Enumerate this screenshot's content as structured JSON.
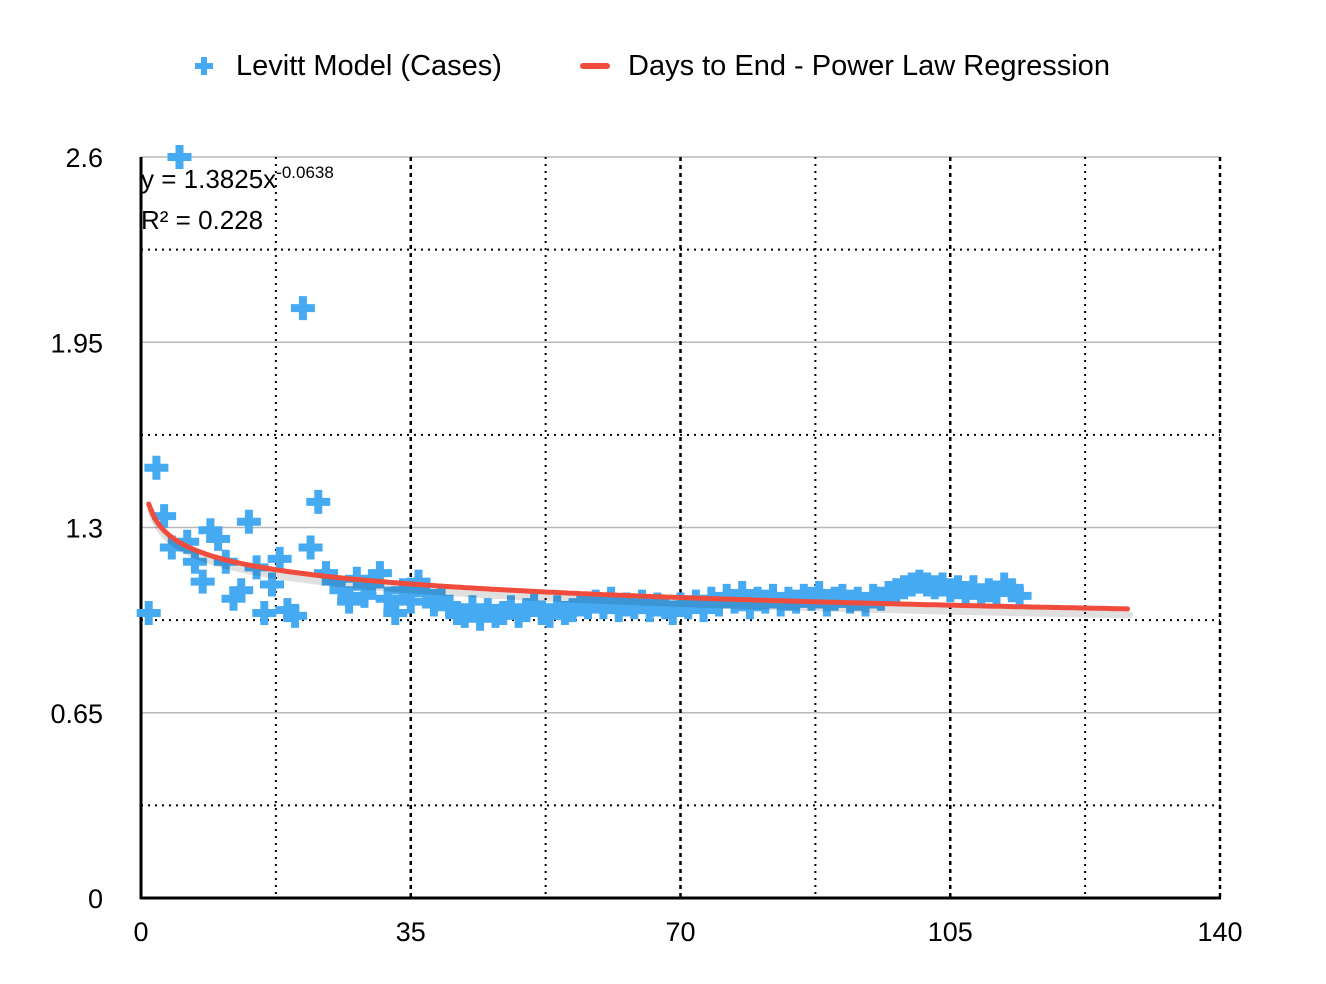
{
  "legend": {
    "series1_label": "Levitt Model (Cases)",
    "series2_label": "Days to End - Power Law Regression"
  },
  "colors": {
    "scatter": "#45aaf2",
    "regression": "#f04c3e",
    "grid_solid": "#b8b8b8",
    "grid_dotted": "#000000",
    "axis": "#000000"
  },
  "icons": {
    "scatter_marker": "plus-marker-icon",
    "regression_marker": "line-swatch-icon"
  },
  "chart_data": {
    "type": "scatter",
    "title": "",
    "xlabel": "",
    "ylabel": "",
    "xlim": [
      0,
      140
    ],
    "ylim": [
      0,
      2.6
    ],
    "x_ticks": [
      "0",
      "35",
      "70",
      "105",
      "140"
    ],
    "y_ticks": [
      "0",
      "0.65",
      "1.3",
      "1.95",
      "2.6"
    ],
    "grid": true,
    "legend_position": "top",
    "trendline": {
      "name": "Days to End - Power Law Regression",
      "type": "power",
      "coefficient": 1.3825,
      "exponent": -0.0638,
      "x_range": [
        1,
        128
      ],
      "equation_label": {
        "prefix": "y = 1.3825x",
        "exponent_text": "-0.0638",
        "r2_text": "R² = 0.228"
      }
    },
    "series": [
      {
        "name": "Levitt Model (Cases)",
        "points": [
          [
            1,
            1.0
          ],
          [
            2,
            1.51
          ],
          [
            3,
            1.34
          ],
          [
            4,
            1.23
          ],
          [
            5,
            2.6
          ],
          [
            6,
            1.25
          ],
          [
            7,
            1.18
          ],
          [
            8,
            1.11
          ],
          [
            9,
            1.29
          ],
          [
            10,
            1.26
          ],
          [
            11,
            1.18
          ],
          [
            12,
            1.05
          ],
          [
            13,
            1.08
          ],
          [
            14,
            1.32
          ],
          [
            15,
            1.16
          ],
          [
            16,
            1.0
          ],
          [
            17,
            1.1
          ],
          [
            18,
            1.19
          ],
          [
            19,
            1.01
          ],
          [
            20,
            0.99
          ],
          [
            21,
            2.07
          ],
          [
            22,
            1.23
          ],
          [
            23,
            1.39
          ],
          [
            24,
            1.14
          ],
          [
            25,
            1.11
          ],
          [
            26,
            1.08
          ],
          [
            27,
            1.04
          ],
          [
            28,
            1.12
          ],
          [
            29,
            1.06
          ],
          [
            30,
            1.1
          ],
          [
            31,
            1.14
          ],
          [
            32,
            1.05
          ],
          [
            33,
            1.0
          ],
          [
            34,
            1.08
          ],
          [
            35,
            1.04
          ],
          [
            36,
            1.11
          ],
          [
            37,
            1.07
          ],
          [
            38,
            1.03
          ],
          [
            39,
            1.05
          ],
          [
            40,
            1.02
          ],
          [
            41,
            1.0
          ],
          [
            42,
            0.99
          ],
          [
            43,
            1.02
          ],
          [
            44,
            0.98
          ],
          [
            45,
            1.01
          ],
          [
            46,
            0.99
          ],
          [
            47,
            1.0
          ],
          [
            48,
            1.02
          ],
          [
            49,
            0.99
          ],
          [
            50,
            1.01
          ],
          [
            51,
            1.03
          ],
          [
            52,
            1.0
          ],
          [
            53,
            0.99
          ],
          [
            54,
            1.02
          ],
          [
            55,
            1.0
          ],
          [
            56,
            1.01
          ],
          [
            57,
            1.03
          ],
          [
            58,
            1.02
          ],
          [
            59,
            1.04
          ],
          [
            60,
            1.02
          ],
          [
            61,
            1.05
          ],
          [
            62,
            1.01
          ],
          [
            63,
            1.03
          ],
          [
            64,
            1.02
          ],
          [
            65,
            1.04
          ],
          [
            66,
            1.01
          ],
          [
            67,
            1.03
          ],
          [
            68,
            1.02
          ],
          [
            69,
            1.0
          ],
          [
            70,
            1.03
          ],
          [
            71,
            1.02
          ],
          [
            72,
            1.04
          ],
          [
            73,
            1.01
          ],
          [
            74,
            1.05
          ],
          [
            75,
            1.03
          ],
          [
            76,
            1.06
          ],
          [
            77,
            1.04
          ],
          [
            78,
            1.07
          ],
          [
            79,
            1.02
          ],
          [
            80,
            1.05
          ],
          [
            81,
            1.04
          ],
          [
            82,
            1.06
          ],
          [
            83,
            1.03
          ],
          [
            84,
            1.05
          ],
          [
            85,
            1.04
          ],
          [
            86,
            1.06
          ],
          [
            87,
            1.05
          ],
          [
            88,
            1.07
          ],
          [
            89,
            1.03
          ],
          [
            90,
            1.05
          ],
          [
            91,
            1.06
          ],
          [
            92,
            1.04
          ],
          [
            93,
            1.05
          ],
          [
            94,
            1.03
          ],
          [
            95,
            1.06
          ],
          [
            96,
            1.05
          ],
          [
            97,
            1.07
          ],
          [
            98,
            1.08
          ],
          [
            99,
            1.09
          ],
          [
            100,
            1.1
          ],
          [
            101,
            1.11
          ],
          [
            102,
            1.1
          ],
          [
            103,
            1.09
          ],
          [
            104,
            1.1
          ],
          [
            105,
            1.08
          ],
          [
            106,
            1.09
          ],
          [
            107,
            1.07
          ],
          [
            108,
            1.09
          ],
          [
            109,
            1.06
          ],
          [
            110,
            1.08
          ],
          [
            111,
            1.07
          ],
          [
            112,
            1.1
          ],
          [
            113,
            1.08
          ],
          [
            114,
            1.06
          ]
        ]
      }
    ]
  }
}
